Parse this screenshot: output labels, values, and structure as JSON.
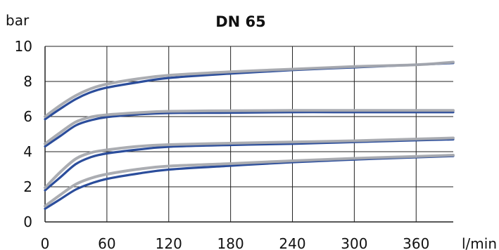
{
  "chart_data": {
    "type": "line",
    "title": "DN 65",
    "ylabel": "bar",
    "xlabel": "l/min",
    "xlim": [
      0,
      396
    ],
    "ylim": [
      0,
      10
    ],
    "x_ticks": [
      "0",
      "60",
      "120",
      "180",
      "240",
      "300",
      "360"
    ],
    "y_ticks": [
      "0",
      "2",
      "4",
      "6",
      "8",
      "10"
    ],
    "grid": true,
    "colors": {
      "main": "#2b4d9b",
      "band": "#a7a9ae"
    },
    "series": [
      {
        "x": [
          0,
          15,
          30,
          45,
          60,
          90,
          120,
          180,
          240,
          300,
          360,
          396
        ],
        "main": [
          5.85,
          6.45,
          7.0,
          7.4,
          7.65,
          7.95,
          8.2,
          8.45,
          8.65,
          8.8,
          8.95,
          9.05
        ],
        "band": [
          6.0,
          6.65,
          7.2,
          7.6,
          7.85,
          8.15,
          8.35,
          8.55,
          8.7,
          8.85,
          8.95,
          9.1
        ]
      },
      {
        "x": [
          0,
          15,
          30,
          45,
          60,
          90,
          120,
          180,
          240,
          300,
          360,
          396
        ],
        "main": [
          4.3,
          4.9,
          5.5,
          5.8,
          5.97,
          6.12,
          6.2,
          6.22,
          6.25,
          6.25,
          6.25,
          6.25
        ],
        "band": [
          4.45,
          5.1,
          5.7,
          5.98,
          6.1,
          6.22,
          6.3,
          6.33,
          6.35,
          6.35,
          6.35,
          6.35
        ]
      },
      {
        "x": [
          0,
          15,
          30,
          45,
          60,
          90,
          120,
          180,
          240,
          300,
          360,
          396
        ],
        "main": [
          1.8,
          2.55,
          3.3,
          3.7,
          3.9,
          4.12,
          4.28,
          4.38,
          4.45,
          4.55,
          4.65,
          4.7
        ],
        "band": [
          1.95,
          2.85,
          3.6,
          3.95,
          4.1,
          4.3,
          4.4,
          4.48,
          4.55,
          4.62,
          4.72,
          4.78
        ]
      },
      {
        "x": [
          0,
          15,
          30,
          45,
          60,
          90,
          120,
          180,
          240,
          300,
          360,
          396
        ],
        "main": [
          0.75,
          1.3,
          1.85,
          2.2,
          2.45,
          2.75,
          2.98,
          3.2,
          3.4,
          3.55,
          3.68,
          3.75
        ],
        "band": [
          0.9,
          1.55,
          2.15,
          2.5,
          2.72,
          3.0,
          3.18,
          3.32,
          3.48,
          3.62,
          3.73,
          3.8
        ]
      }
    ]
  }
}
